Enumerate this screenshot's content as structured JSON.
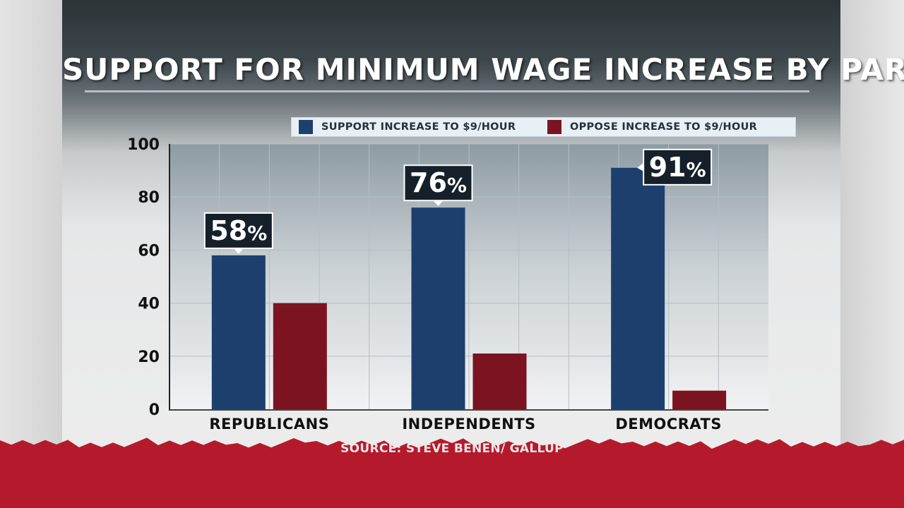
{
  "title": "SUPPORT FOR MINIMUM WAGE INCREASE BY PARTY",
  "source": "SOURCE: STEVE BENEN/ GALLUP",
  "colors": {
    "support": "#1d3f6e",
    "oppose": "#7b1420",
    "band": "#b51a2c"
  },
  "chart_data": {
    "type": "bar",
    "title": "SUPPORT FOR MINIMUM WAGE INCREASE BY PARTY",
    "categories": [
      "REPUBLICANS",
      "INDEPENDENTS",
      "DEMOCRATS"
    ],
    "series": [
      {
        "name": "SUPPORT INCREASE TO $9/HOUR",
        "values": [
          58,
          76,
          91
        ],
        "labels": [
          "58%",
          "76%",
          "91%"
        ]
      },
      {
        "name": "OPPOSE INCREASE TO $9/HOUR",
        "values": [
          40,
          21,
          7
        ]
      }
    ],
    "yticks": [
      0,
      20,
      40,
      60,
      80,
      100
    ],
    "ylim": [
      0,
      100
    ],
    "grid": true,
    "legend_position": "top-right"
  }
}
